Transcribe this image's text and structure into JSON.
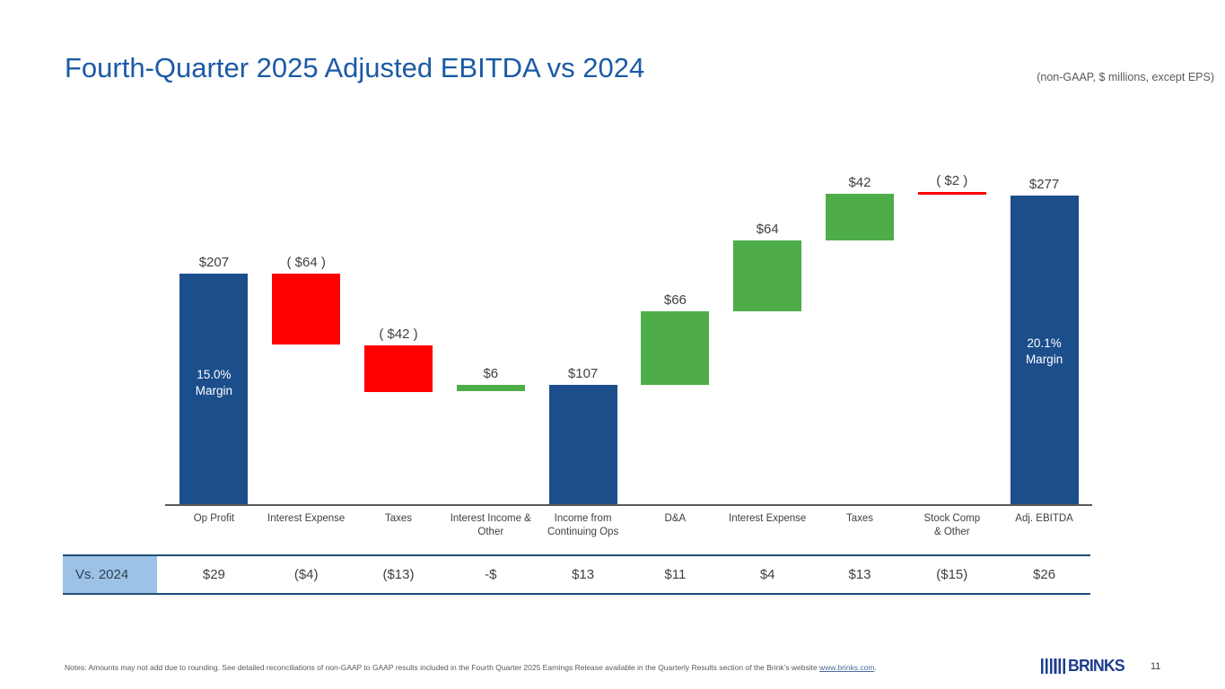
{
  "slide": {
    "title": "Fourth-Quarter 2025 Adjusted EBITDA vs 2024",
    "subtitle": "(non-GAAP, $ millions, except EPS)",
    "page_number": "11",
    "logo_text": "BRINKS",
    "notes_prefix": "Notes: Amounts may not add due to rounding. See detailed reconciliations of non-GAAP to GAAP results included in the Fourth Quarter 2025 Earnings Release available in the Quarterly Results section of the Brink’s website ",
    "notes_link": "www.brinks.com",
    "notes_suffix": "."
  },
  "colors": {
    "title_blue": "#1B5AA5",
    "bar_blue": "#1C4E8C",
    "bar_green": "#4EAD49",
    "bar_red": "#FF0000",
    "axis_gray": "#595959",
    "label_gray": "#404040",
    "table_border_navy": "#1F4E79",
    "table_label_bg": "#9CC2E5",
    "logo_navy": "#1B3C8C"
  },
  "chart_data": {
    "type": "waterfall",
    "title": "Fourth-Quarter 2025 Adjusted EBITDA vs 2024",
    "unit": "$ millions",
    "ylim": [
      0,
      324
    ],
    "grid": false,
    "bars": [
      {
        "category": [
          "Op Profit"
        ],
        "value": 207,
        "from": 0,
        "to": 207,
        "label": "$207",
        "color": "blue",
        "inner_label": [
          "15.0%",
          "Margin"
        ],
        "inner_bottom": 117
      },
      {
        "category": [
          "Interest Expense"
        ],
        "value": -64,
        "from": 207,
        "to": 143,
        "label": "( $64 )",
        "color": "red"
      },
      {
        "category": [
          "Taxes"
        ],
        "value": -42,
        "from": 143,
        "to": 101,
        "label": "( $42 )",
        "color": "red"
      },
      {
        "category": [
          "Interest Income &",
          "Other"
        ],
        "value": 6,
        "from": 101,
        "to": 107,
        "label": "$6",
        "color": "green"
      },
      {
        "category": [
          "Income from",
          "Continuing Ops"
        ],
        "value": 107,
        "from": 0,
        "to": 107,
        "label": "$107",
        "color": "blue"
      },
      {
        "category": [
          "D&A"
        ],
        "value": 66,
        "from": 107,
        "to": 173,
        "label": "$66",
        "color": "green"
      },
      {
        "category": [
          "Interest Expense"
        ],
        "value": 64,
        "from": 173,
        "to": 237,
        "label": "$64",
        "color": "green"
      },
      {
        "category": [
          "Taxes"
        ],
        "value": 42,
        "from": 237,
        "to": 279,
        "label": "$42",
        "color": "green"
      },
      {
        "category": [
          "Stock Comp",
          "& Other"
        ],
        "value": -2,
        "from": 279,
        "to": 277,
        "label": "( $2 )",
        "color": "red",
        "style": "line"
      },
      {
        "category": [
          "Adj. EBITDA"
        ],
        "value": 277,
        "from": 0,
        "to": 277,
        "label": "$277",
        "color": "blue",
        "inner_label": [
          "20.1%",
          "Margin"
        ],
        "inner_bottom": 152
      }
    ],
    "comparison_row": {
      "label": "Vs. 2024",
      "values": [
        "$29",
        "($4)",
        "($13)",
        "-$",
        "$13",
        "$11",
        "$4",
        "$13",
        "($15)",
        "$26"
      ]
    }
  }
}
